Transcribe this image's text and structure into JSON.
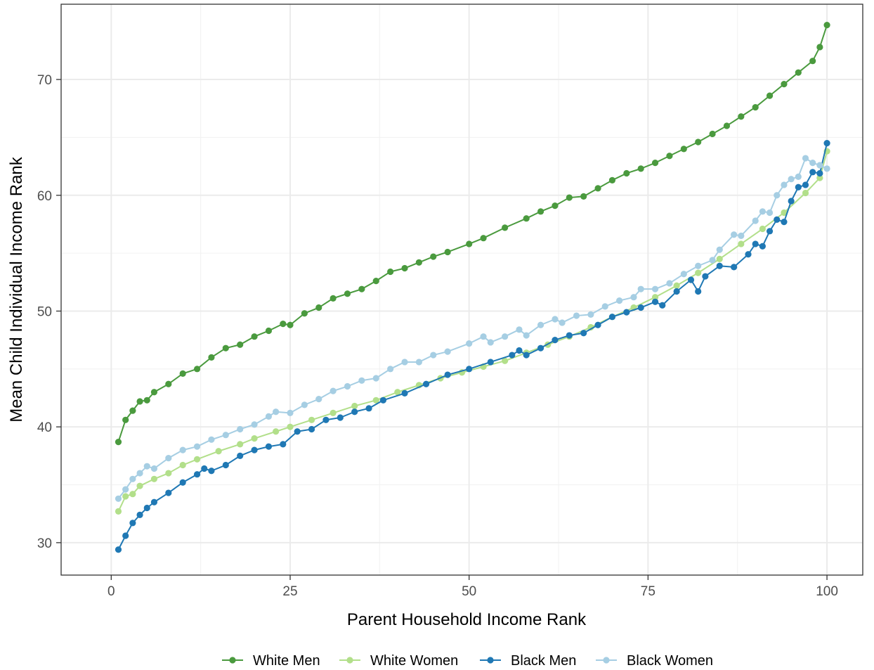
{
  "chart_data": {
    "type": "line",
    "xlabel": "Parent Household Income Rank",
    "ylabel": "Mean Child Individual Income Rank",
    "xlim": [
      -7,
      105
    ],
    "ylim": [
      27.2,
      76.5
    ],
    "xticks": [
      0,
      25,
      50,
      75,
      100
    ],
    "yticks": [
      30,
      40,
      50,
      60,
      70
    ],
    "grid": true,
    "legend_position": "bottom",
    "series": [
      {
        "name": "White Men",
        "color": "#4a9a3e",
        "values": [
          {
            "x": 1,
            "y": 38.7
          },
          {
            "x": 2,
            "y": 40.6
          },
          {
            "x": 3,
            "y": 41.4
          },
          {
            "x": 4,
            "y": 42.2
          },
          {
            "x": 5,
            "y": 42.3
          },
          {
            "x": 6,
            "y": 43.0
          },
          {
            "x": 8,
            "y": 43.7
          },
          {
            "x": 10,
            "y": 44.6
          },
          {
            "x": 12,
            "y": 45.0
          },
          {
            "x": 14,
            "y": 46.0
          },
          {
            "x": 16,
            "y": 46.8
          },
          {
            "x": 18,
            "y": 47.1
          },
          {
            "x": 20,
            "y": 47.8
          },
          {
            "x": 22,
            "y": 48.3
          },
          {
            "x": 24,
            "y": 48.9
          },
          {
            "x": 25,
            "y": 48.8
          },
          {
            "x": 27,
            "y": 49.8
          },
          {
            "x": 29,
            "y": 50.3
          },
          {
            "x": 31,
            "y": 51.1
          },
          {
            "x": 33,
            "y": 51.5
          },
          {
            "x": 35,
            "y": 51.9
          },
          {
            "x": 37,
            "y": 52.6
          },
          {
            "x": 39,
            "y": 53.4
          },
          {
            "x": 41,
            "y": 53.7
          },
          {
            "x": 43,
            "y": 54.2
          },
          {
            "x": 45,
            "y": 54.7
          },
          {
            "x": 47,
            "y": 55.1
          },
          {
            "x": 50,
            "y": 55.8
          },
          {
            "x": 52,
            "y": 56.3
          },
          {
            "x": 55,
            "y": 57.2
          },
          {
            "x": 58,
            "y": 58.0
          },
          {
            "x": 60,
            "y": 58.6
          },
          {
            "x": 62,
            "y": 59.1
          },
          {
            "x": 64,
            "y": 59.8
          },
          {
            "x": 66,
            "y": 59.9
          },
          {
            "x": 68,
            "y": 60.6
          },
          {
            "x": 70,
            "y": 61.3
          },
          {
            "x": 72,
            "y": 61.9
          },
          {
            "x": 74,
            "y": 62.3
          },
          {
            "x": 76,
            "y": 62.8
          },
          {
            "x": 78,
            "y": 63.4
          },
          {
            "x": 80,
            "y": 64.0
          },
          {
            "x": 82,
            "y": 64.6
          },
          {
            "x": 84,
            "y": 65.3
          },
          {
            "x": 86,
            "y": 66.0
          },
          {
            "x": 88,
            "y": 66.8
          },
          {
            "x": 90,
            "y": 67.6
          },
          {
            "x": 92,
            "y": 68.6
          },
          {
            "x": 94,
            "y": 69.6
          },
          {
            "x": 96,
            "y": 70.6
          },
          {
            "x": 98,
            "y": 71.6
          },
          {
            "x": 99,
            "y": 72.8
          },
          {
            "x": 100,
            "y": 74.7
          }
        ]
      },
      {
        "name": "White Women",
        "color": "#b2df8a",
        "values": [
          {
            "x": 1,
            "y": 32.7
          },
          {
            "x": 2,
            "y": 34.0
          },
          {
            "x": 3,
            "y": 34.2
          },
          {
            "x": 4,
            "y": 34.9
          },
          {
            "x": 6,
            "y": 35.5
          },
          {
            "x": 8,
            "y": 36.0
          },
          {
            "x": 10,
            "y": 36.7
          },
          {
            "x": 12,
            "y": 37.2
          },
          {
            "x": 15,
            "y": 37.9
          },
          {
            "x": 18,
            "y": 38.5
          },
          {
            "x": 20,
            "y": 39.0
          },
          {
            "x": 23,
            "y": 39.6
          },
          {
            "x": 25,
            "y": 40.0
          },
          {
            "x": 28,
            "y": 40.6
          },
          {
            "x": 31,
            "y": 41.2
          },
          {
            "x": 34,
            "y": 41.8
          },
          {
            "x": 37,
            "y": 42.3
          },
          {
            "x": 40,
            "y": 43.0
          },
          {
            "x": 43,
            "y": 43.6
          },
          {
            "x": 46,
            "y": 44.2
          },
          {
            "x": 49,
            "y": 44.7
          },
          {
            "x": 52,
            "y": 45.2
          },
          {
            "x": 55,
            "y": 45.7
          },
          {
            "x": 58,
            "y": 46.4
          },
          {
            "x": 61,
            "y": 47.1
          },
          {
            "x": 64,
            "y": 47.8
          },
          {
            "x": 67,
            "y": 48.6
          },
          {
            "x": 70,
            "y": 49.5
          },
          {
            "x": 73,
            "y": 50.3
          },
          {
            "x": 76,
            "y": 51.2
          },
          {
            "x": 79,
            "y": 52.2
          },
          {
            "x": 82,
            "y": 53.3
          },
          {
            "x": 85,
            "y": 54.5
          },
          {
            "x": 88,
            "y": 55.8
          },
          {
            "x": 91,
            "y": 57.1
          },
          {
            "x": 94,
            "y": 58.5
          },
          {
            "x": 97,
            "y": 60.2
          },
          {
            "x": 99,
            "y": 61.5
          },
          {
            "x": 100,
            "y": 63.8
          }
        ]
      },
      {
        "name": "Black Men",
        "color": "#1f78b4",
        "values": [
          {
            "x": 1,
            "y": 29.4
          },
          {
            "x": 2,
            "y": 30.6
          },
          {
            "x": 3,
            "y": 31.7
          },
          {
            "x": 4,
            "y": 32.4
          },
          {
            "x": 5,
            "y": 33.0
          },
          {
            "x": 6,
            "y": 33.5
          },
          {
            "x": 8,
            "y": 34.3
          },
          {
            "x": 10,
            "y": 35.2
          },
          {
            "x": 12,
            "y": 35.9
          },
          {
            "x": 13,
            "y": 36.4
          },
          {
            "x": 14,
            "y": 36.2
          },
          {
            "x": 16,
            "y": 36.7
          },
          {
            "x": 18,
            "y": 37.5
          },
          {
            "x": 20,
            "y": 38.0
          },
          {
            "x": 22,
            "y": 38.3
          },
          {
            "x": 24,
            "y": 38.5
          },
          {
            "x": 26,
            "y": 39.6
          },
          {
            "x": 28,
            "y": 39.8
          },
          {
            "x": 30,
            "y": 40.6
          },
          {
            "x": 32,
            "y": 40.8
          },
          {
            "x": 34,
            "y": 41.3
          },
          {
            "x": 36,
            "y": 41.6
          },
          {
            "x": 38,
            "y": 42.3
          },
          {
            "x": 41,
            "y": 42.9
          },
          {
            "x": 44,
            "y": 43.7
          },
          {
            "x": 47,
            "y": 44.5
          },
          {
            "x": 50,
            "y": 45.0
          },
          {
            "x": 53,
            "y": 45.6
          },
          {
            "x": 56,
            "y": 46.2
          },
          {
            "x": 57,
            "y": 46.6
          },
          {
            "x": 58,
            "y": 46.2
          },
          {
            "x": 60,
            "y": 46.8
          },
          {
            "x": 62,
            "y": 47.5
          },
          {
            "x": 64,
            "y": 47.9
          },
          {
            "x": 66,
            "y": 48.1
          },
          {
            "x": 68,
            "y": 48.8
          },
          {
            "x": 70,
            "y": 49.5
          },
          {
            "x": 72,
            "y": 49.9
          },
          {
            "x": 74,
            "y": 50.3
          },
          {
            "x": 76,
            "y": 50.8
          },
          {
            "x": 77,
            "y": 50.5
          },
          {
            "x": 79,
            "y": 51.7
          },
          {
            "x": 81,
            "y": 52.7
          },
          {
            "x": 82,
            "y": 51.7
          },
          {
            "x": 83,
            "y": 53.0
          },
          {
            "x": 85,
            "y": 53.9
          },
          {
            "x": 87,
            "y": 53.8
          },
          {
            "x": 89,
            "y": 54.9
          },
          {
            "x": 90,
            "y": 55.8
          },
          {
            "x": 91,
            "y": 55.6
          },
          {
            "x": 92,
            "y": 56.9
          },
          {
            "x": 93,
            "y": 57.9
          },
          {
            "x": 94,
            "y": 57.7
          },
          {
            "x": 95,
            "y": 59.5
          },
          {
            "x": 96,
            "y": 60.7
          },
          {
            "x": 97,
            "y": 60.9
          },
          {
            "x": 98,
            "y": 62.0
          },
          {
            "x": 99,
            "y": 61.9
          },
          {
            "x": 100,
            "y": 64.5
          }
        ]
      },
      {
        "name": "Black Women",
        "color": "#a6cee3",
        "values": [
          {
            "x": 1,
            "y": 33.8
          },
          {
            "x": 2,
            "y": 34.6
          },
          {
            "x": 3,
            "y": 35.5
          },
          {
            "x": 4,
            "y": 36.0
          },
          {
            "x": 5,
            "y": 36.6
          },
          {
            "x": 6,
            "y": 36.4
          },
          {
            "x": 8,
            "y": 37.3
          },
          {
            "x": 10,
            "y": 38.0
          },
          {
            "x": 12,
            "y": 38.3
          },
          {
            "x": 14,
            "y": 38.9
          },
          {
            "x": 16,
            "y": 39.3
          },
          {
            "x": 18,
            "y": 39.8
          },
          {
            "x": 20,
            "y": 40.2
          },
          {
            "x": 22,
            "y": 40.9
          },
          {
            "x": 23,
            "y": 41.3
          },
          {
            "x": 25,
            "y": 41.2
          },
          {
            "x": 27,
            "y": 41.9
          },
          {
            "x": 29,
            "y": 42.4
          },
          {
            "x": 31,
            "y": 43.1
          },
          {
            "x": 33,
            "y": 43.5
          },
          {
            "x": 35,
            "y": 44.0
          },
          {
            "x": 37,
            "y": 44.2
          },
          {
            "x": 39,
            "y": 45.0
          },
          {
            "x": 41,
            "y": 45.6
          },
          {
            "x": 43,
            "y": 45.6
          },
          {
            "x": 45,
            "y": 46.2
          },
          {
            "x": 47,
            "y": 46.5
          },
          {
            "x": 50,
            "y": 47.2
          },
          {
            "x": 52,
            "y": 47.8
          },
          {
            "x": 53,
            "y": 47.3
          },
          {
            "x": 55,
            "y": 47.8
          },
          {
            "x": 57,
            "y": 48.4
          },
          {
            "x": 58,
            "y": 47.9
          },
          {
            "x": 60,
            "y": 48.8
          },
          {
            "x": 62,
            "y": 49.3
          },
          {
            "x": 63,
            "y": 49.0
          },
          {
            "x": 65,
            "y": 49.6
          },
          {
            "x": 67,
            "y": 49.7
          },
          {
            "x": 69,
            "y": 50.4
          },
          {
            "x": 71,
            "y": 50.9
          },
          {
            "x": 73,
            "y": 51.2
          },
          {
            "x": 74,
            "y": 51.9
          },
          {
            "x": 76,
            "y": 51.9
          },
          {
            "x": 78,
            "y": 52.4
          },
          {
            "x": 80,
            "y": 53.2
          },
          {
            "x": 82,
            "y": 53.9
          },
          {
            "x": 84,
            "y": 54.4
          },
          {
            "x": 85,
            "y": 55.3
          },
          {
            "x": 87,
            "y": 56.6
          },
          {
            "x": 88,
            "y": 56.5
          },
          {
            "x": 90,
            "y": 57.8
          },
          {
            "x": 91,
            "y": 58.6
          },
          {
            "x": 92,
            "y": 58.5
          },
          {
            "x": 93,
            "y": 60.0
          },
          {
            "x": 94,
            "y": 60.9
          },
          {
            "x": 95,
            "y": 61.4
          },
          {
            "x": 96,
            "y": 61.6
          },
          {
            "x": 97,
            "y": 63.2
          },
          {
            "x": 98,
            "y": 62.8
          },
          {
            "x": 99,
            "y": 62.6
          },
          {
            "x": 100,
            "y": 62.3
          }
        ]
      }
    ]
  }
}
